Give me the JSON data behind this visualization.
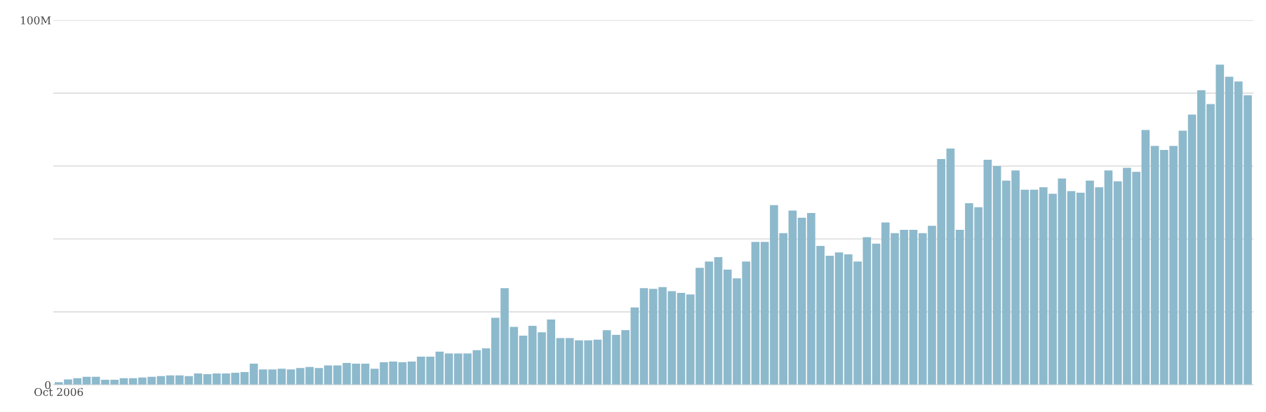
{
  "chart_data": {
    "type": "bar",
    "categories": [
      "Oct 2006",
      null,
      null,
      null,
      null,
      null,
      null,
      null,
      null,
      null,
      null,
      null,
      null,
      null,
      null,
      null,
      null,
      null,
      null,
      null,
      null,
      null,
      null,
      null,
      null,
      null,
      null,
      null,
      null,
      null,
      null,
      null,
      null,
      null,
      null,
      null,
      null,
      null,
      null,
      null,
      null,
      null,
      null,
      null,
      null,
      null,
      null,
      null,
      null,
      null,
      null,
      null,
      null,
      null,
      null,
      null,
      null,
      null,
      null,
      null,
      null,
      null,
      null,
      null,
      null,
      null,
      null,
      null,
      null,
      null,
      null,
      null,
      null,
      null,
      null,
      null,
      null,
      null,
      null,
      null,
      null,
      null,
      null,
      null,
      null,
      null,
      null,
      null,
      null,
      null,
      null,
      null,
      null,
      null,
      null,
      null,
      null,
      null,
      null,
      null,
      null,
      null,
      null,
      null,
      null,
      null,
      null,
      null,
      null,
      null,
      null,
      null,
      null,
      null,
      null,
      null,
      null,
      null,
      null,
      null,
      null,
      null,
      null,
      null,
      null,
      null,
      null,
      null,
      null
    ],
    "values": [
      0.7,
      1.5,
      1.8,
      2.2,
      2.2,
      1.4,
      1.4,
      1.8,
      1.8,
      2.0,
      2.2,
      2.4,
      2.6,
      2.6,
      2.4,
      3.1,
      2.9,
      3.1,
      3.1,
      3.3,
      3.5,
      5.8,
      4.2,
      4.2,
      4.4,
      4.2,
      4.6,
      4.9,
      4.6,
      5.3,
      5.3,
      6.0,
      5.8,
      5.8,
      4.4,
      6.2,
      6.4,
      6.2,
      6.4,
      7.7,
      7.7,
      9.1,
      8.6,
      8.6,
      8.6,
      9.5,
      10.0,
      18.4,
      26.5,
      15.9,
      13.5,
      16.2,
      14.4,
      17.9,
      12.8,
      12.8,
      12.2,
      12.2,
      12.4,
      15.0,
      13.7,
      15.0,
      21.2,
      26.5,
      26.3,
      26.8,
      25.7,
      25.2,
      24.8,
      32.1,
      33.8,
      35.0,
      31.6,
      29.2,
      33.8,
      39.2,
      39.2,
      49.3,
      41.6,
      47.8,
      45.8,
      47.1,
      38.1,
      35.4,
      36.3,
      35.8,
      33.8,
      40.5,
      38.7,
      44.5,
      41.6,
      42.5,
      42.5,
      41.6,
      43.6,
      61.9,
      64.8,
      42.5,
      49.8,
      48.7,
      61.7,
      60.0,
      56.0,
      58.8,
      53.5,
      53.5,
      54.2,
      52.4,
      56.6,
      53.1,
      52.7,
      56.0,
      54.2,
      58.8,
      55.8,
      59.5,
      58.4,
      69.9,
      65.5,
      64.4,
      65.5,
      69.7,
      74.1,
      80.8,
      77.0,
      87.8,
      84.5,
      83.2,
      79.4
    ],
    "color": "#8db9cc",
    "ylim": [
      0,
      100
    ],
    "yticks": [
      0,
      {
        "value": 20,
        "label": null
      },
      {
        "value": 40,
        "label": null
      },
      {
        "value": 60,
        "label": null
      },
      {
        "value": 80,
        "label": null
      },
      {
        "value": 100,
        "label": "100M"
      }
    ],
    "grid": "y"
  }
}
